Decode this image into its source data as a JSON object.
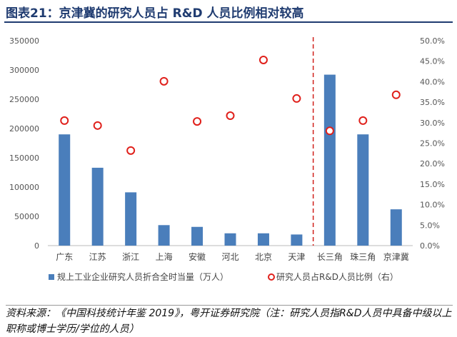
{
  "title": "图表21：京津冀的研究人员占 R&D 人员比例相对较高",
  "note": "资料来源：《中国科技统计年鉴 2019》，粤开证券研究院（注：研究人员指R&D人员中具备中级以上职称或博士学历/学位的人员）",
  "chart_data": {
    "type": "bar+scatter",
    "categories": [
      "广东",
      "江苏",
      "浙江",
      "上海",
      "安徽",
      "河北",
      "北京",
      "天津",
      "长三角",
      "珠三角",
      "京津冀"
    ],
    "series": [
      {
        "name": "规上工业企业研究人员折合全时当量（万人）",
        "type": "bar",
        "axis": "left",
        "color": "#4a7ebb",
        "values": [
          190000,
          133000,
          91000,
          35000,
          32000,
          21000,
          21000,
          19000,
          292000,
          190000,
          62000
        ]
      },
      {
        "name": "研究人员占R&D人员比例（右）",
        "type": "scatter",
        "axis": "right",
        "color": "#e0201b",
        "values": [
          30.5,
          29.3,
          23.2,
          40.1,
          30.3,
          31.7,
          45.3,
          35.9,
          28.0,
          30.5,
          36.8
        ]
      }
    ],
    "ylim": [
      0,
      350000
    ],
    "yticks": [
      "0",
      "50000",
      "100000",
      "150000",
      "200000",
      "250000",
      "300000",
      "350000"
    ],
    "y2lim": [
      0,
      50
    ],
    "y2ticks": [
      "0.0%",
      "5.0%",
      "10.0%",
      "15.0%",
      "20.0%",
      "25.0%",
      "30.0%",
      "35.0%",
      "40.0%",
      "45.0%",
      "50.0%"
    ],
    "divider_after": "天津",
    "legend": "bottom",
    "grid": false
  }
}
